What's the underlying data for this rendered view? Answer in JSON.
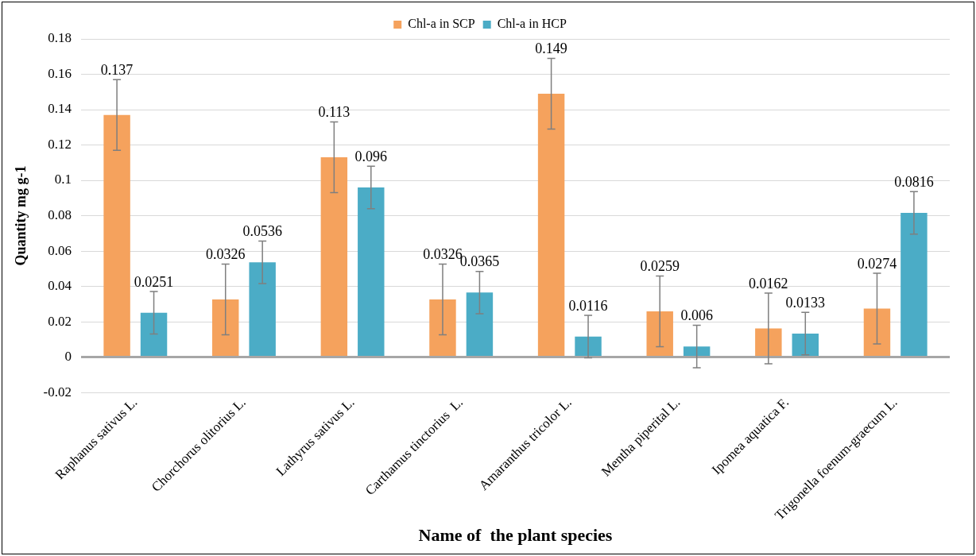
{
  "chart_data": {
    "type": "bar",
    "xlabel": "Name of  the plant species",
    "ylabel": "Quantity mg g-1",
    "categories": [
      "Raphanus sativus L.",
      "Chorchorus olitorius L.",
      "Lathyrus sativus L.",
      "Carthamus tinctorius  L.",
      "Amaranthus tricolor L.",
      "Mentha piperital L.",
      "Ipomea aquatica F.",
      "Trigonella foenum-graecum L."
    ],
    "series": [
      {
        "name": "Chl-a in SCP",
        "color": "#f5a25d",
        "values": [
          0.137,
          0.0326,
          0.113,
          0.0326,
          0.149,
          0.0259,
          0.0162,
          0.0274
        ],
        "errors": [
          0.02,
          0.02,
          0.02,
          0.02,
          0.02,
          0.02,
          0.02,
          0.02
        ]
      },
      {
        "name": "Chl-a in HCP",
        "color": "#4bacc6",
        "values": [
          0.0251,
          0.0536,
          0.096,
          0.0365,
          0.0116,
          0.006,
          0.0133,
          0.0816
        ],
        "errors": [
          0.012,
          0.012,
          0.012,
          0.012,
          0.012,
          0.012,
          0.012,
          0.012
        ]
      }
    ],
    "ylim": [
      -0.02,
      0.18
    ],
    "yticks": [
      -0.02,
      0,
      0.02,
      0.04,
      0.06,
      0.08,
      0.1,
      0.12,
      0.14,
      0.16,
      0.18
    ],
    "grid": "y",
    "legend": "top",
    "data_labels": true
  }
}
